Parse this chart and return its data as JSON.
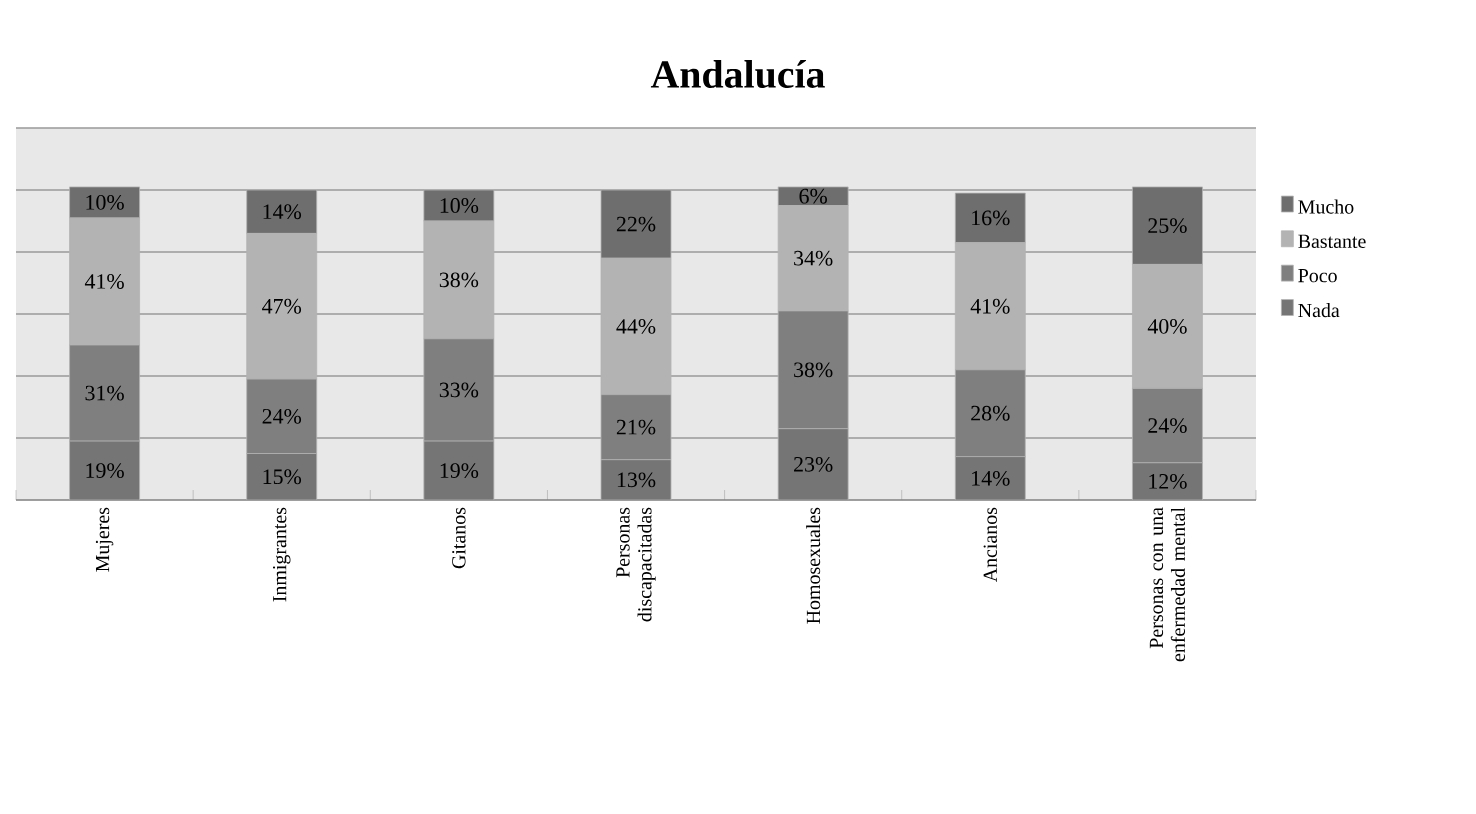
{
  "chart_data": {
    "type": "bar",
    "title": "Andalucía",
    "stacked": true,
    "categories": [
      "Mujeres",
      "Inmigrantes",
      "Gitanos",
      "Personas discapacitadas",
      "Homosexuales",
      "Ancianos",
      "Personas con una enfermedad mental"
    ],
    "series": [
      {
        "name": "Nada",
        "color": "#757575",
        "values": [
          19,
          15,
          19,
          13,
          23,
          14,
          12
        ],
        "value_labels": [
          "19%",
          "15%",
          "19%",
          "13%",
          "23%",
          "14%",
          "12%"
        ]
      },
      {
        "name": "Poco",
        "color": "#7f7f7f",
        "values": [
          31,
          24,
          33,
          21,
          38,
          28,
          24
        ],
        "value_labels": [
          "31%",
          "24%",
          "33%",
          "21%",
          "38%",
          "28%",
          "24%"
        ]
      },
      {
        "name": "Bastante",
        "color": "#b3b3b3",
        "values": [
          41,
          47,
          38,
          44,
          34,
          41,
          40
        ],
        "value_labels": [
          "41%",
          "47%",
          "38%",
          "44%",
          "34%",
          "41%",
          "40%"
        ]
      },
      {
        "name": "Mucho",
        "color": "#6e6e6e",
        "values": [
          10,
          14,
          10,
          22,
          6,
          16,
          25
        ],
        "value_labels": [
          "10%",
          "14%",
          "10%",
          "22%",
          "6%",
          "16%",
          "25%"
        ]
      }
    ],
    "ylim": [
      0,
      120
    ],
    "yticks": [
      {
        "value": 0,
        "label": null
      },
      {
        "value": 20,
        "label": null
      },
      {
        "value": 40,
        "label": null
      },
      {
        "value": 60,
        "label": null
      },
      {
        "value": 80,
        "label": null
      },
      {
        "value": 100,
        "label": null
      },
      {
        "value": 120,
        "label": null
      }
    ],
    "grid": "y",
    "tick_labels": "x",
    "legend": "right"
  }
}
